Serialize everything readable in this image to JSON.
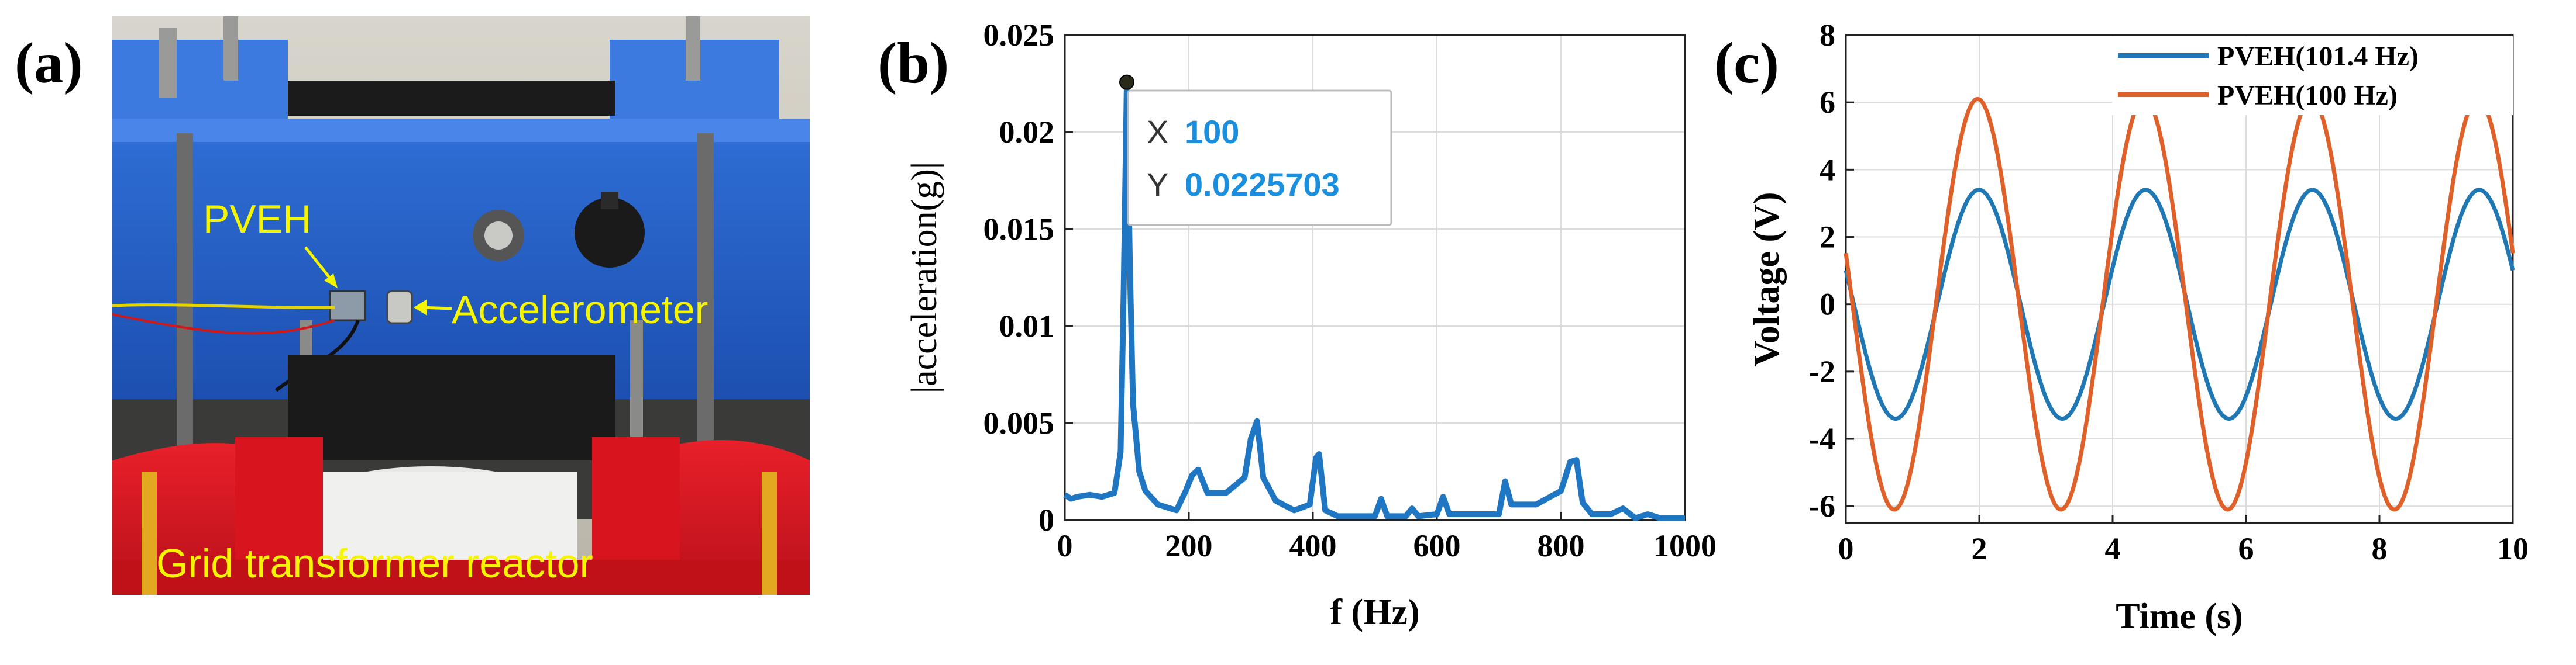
{
  "panels": {
    "a_label": "(a)",
    "b_label": "(b)",
    "c_label": "(c)"
  },
  "photo": {
    "label_pveh": "PVEH",
    "label_accelerometer": "Accelerometer",
    "label_reactor": "Grid transformer reactor",
    "label_color": "#f5f500"
  },
  "chart_data": [
    {
      "type": "line",
      "xlabel": "f (Hz)",
      "ylabel": "|acceleration(g)|",
      "xlim": [
        0,
        1000
      ],
      "ylim": [
        0,
        0.025
      ],
      "xticks": [
        0,
        200,
        400,
        600,
        800,
        1000
      ],
      "yticks": [
        0,
        0.005,
        0.01,
        0.015,
        0.02,
        0.025
      ],
      "ytick_labels": [
        "0",
        "0.005",
        "0.01",
        "0.015",
        "0.02",
        "0.025"
      ],
      "grid": true,
      "color": "#1f77c4",
      "series": [
        {
          "x": [
            0,
            10,
            20,
            40,
            60,
            80,
            90,
            95,
            100,
            105,
            110,
            120,
            130,
            150,
            180,
            195,
            205,
            215,
            230,
            260,
            290,
            300,
            310,
            320,
            340,
            370,
            395,
            405,
            410,
            420,
            440,
            470,
            500,
            510,
            520,
            550,
            560,
            570,
            600,
            610,
            620,
            660,
            700,
            710,
            720,
            760,
            800,
            815,
            825,
            835,
            850,
            880,
            900,
            920,
            940,
            960,
            980,
            1000
          ],
          "y": [
            0.0013,
            0.0011,
            0.0012,
            0.0013,
            0.0012,
            0.0014,
            0.0035,
            0.012,
            0.0225,
            0.013,
            0.006,
            0.0025,
            0.0015,
            0.0008,
            0.0005,
            0.0015,
            0.0023,
            0.0026,
            0.0014,
            0.0014,
            0.0022,
            0.0042,
            0.0051,
            0.0022,
            0.001,
            0.0005,
            0.0008,
            0.0032,
            0.0034,
            0.0005,
            0.0002,
            0.0002,
            0.0002,
            0.0011,
            0.0002,
            0.0002,
            0.0006,
            0.0002,
            0.0003,
            0.0012,
            0.0003,
            0.0003,
            0.0003,
            0.002,
            0.0008,
            0.0008,
            0.0015,
            0.003,
            0.0031,
            0.0009,
            0.0003,
            0.0003,
            0.0006,
            0.0001,
            0.0003,
            0.0001,
            0.0001,
            0.0001
          ]
        }
      ],
      "datatip": {
        "x_label": "X",
        "x_value": "100",
        "y_label": "Y",
        "y_value": "0.0225703",
        "value_color": "#1a8fe0"
      }
    },
    {
      "type": "line",
      "xlabel": "Time (s)",
      "ylabel": "Voltage (V)",
      "xlim": [
        0,
        10
      ],
      "ylim": [
        -6.5,
        8
      ],
      "xticks": [
        0,
        2,
        4,
        6,
        8,
        10
      ],
      "yticks": [
        -6,
        -4,
        -2,
        0,
        2,
        4,
        6,
        8
      ],
      "grid": true,
      "series": [
        {
          "name": "PVEH(101.4 Hz)",
          "color": "#1f77b4",
          "amplitude": 3.4,
          "period": 2.5,
          "phase_time": 0.12
        },
        {
          "name": "PVEH(100 Hz)",
          "color": "#e0602a",
          "amplitude": 6.1,
          "period": 2.5,
          "phase_time": 0.1
        }
      ]
    }
  ]
}
